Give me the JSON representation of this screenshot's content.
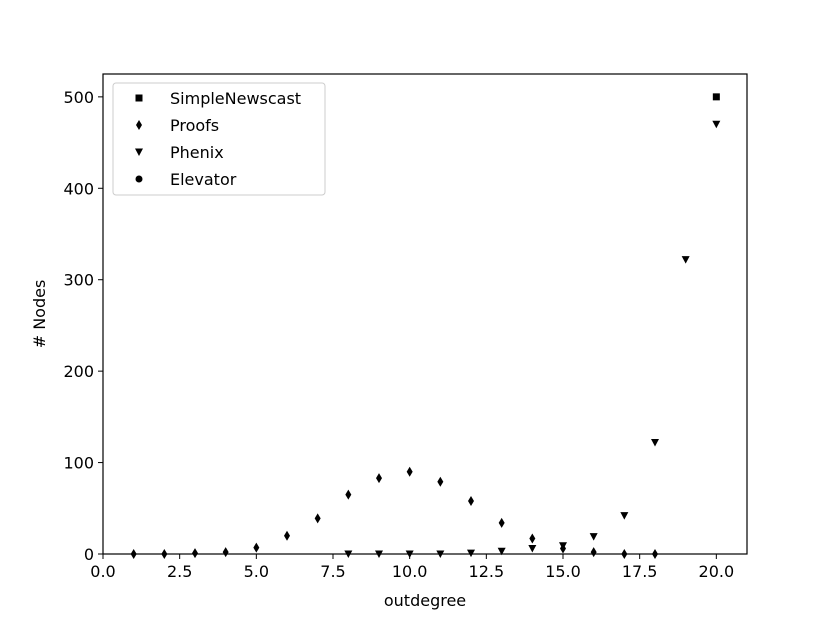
{
  "chart_data": {
    "type": "scatter",
    "title": "",
    "xlabel": "outdegree",
    "ylabel": "# Nodes",
    "xlim": [
      0,
      21
    ],
    "ylim": [
      0,
      525
    ],
    "xticks": [
      0.0,
      2.5,
      5.0,
      7.5,
      10.0,
      12.5,
      15.0,
      17.5,
      20.0
    ],
    "xtick_labels": [
      "0.0",
      "2.5",
      "5.0",
      "7.5",
      "10.0",
      "12.5",
      "15.0",
      "17.5",
      "20.0"
    ],
    "yticks": [
      0,
      100,
      200,
      300,
      400,
      500
    ],
    "ytick_labels": [
      "0",
      "100",
      "200",
      "300",
      "400",
      "500"
    ],
    "grid": false,
    "legend_position": "top-left",
    "series": [
      {
        "name": "SimpleNewscast",
        "marker": "square",
        "color": "#000000",
        "points": [
          [
            20,
            500
          ]
        ]
      },
      {
        "name": "Proofs",
        "marker": "diamond",
        "color": "#000000",
        "points": [
          [
            1,
            0
          ],
          [
            2,
            0
          ],
          [
            3,
            1
          ],
          [
            4,
            2
          ],
          [
            5,
            7
          ],
          [
            6,
            20
          ],
          [
            7,
            39
          ],
          [
            8,
            65
          ],
          [
            9,
            83
          ],
          [
            10,
            90
          ],
          [
            11,
            79
          ],
          [
            12,
            58
          ],
          [
            13,
            34
          ],
          [
            14,
            17
          ],
          [
            15,
            6
          ],
          [
            16,
            2
          ],
          [
            17,
            0
          ],
          [
            18,
            0
          ]
        ]
      },
      {
        "name": "Phenix",
        "marker": "triangle-down",
        "color": "#000000",
        "points": [
          [
            8,
            0
          ],
          [
            9,
            0
          ],
          [
            10,
            0
          ],
          [
            11,
            0
          ],
          [
            12,
            1
          ],
          [
            13,
            3
          ],
          [
            14,
            6
          ],
          [
            15,
            9
          ],
          [
            16,
            19
          ],
          [
            17,
            42
          ],
          [
            18,
            122
          ],
          [
            19,
            322
          ],
          [
            20,
            470
          ]
        ]
      },
      {
        "name": "Elevator",
        "marker": "circle",
        "color": "#000000",
        "points": []
      }
    ]
  }
}
